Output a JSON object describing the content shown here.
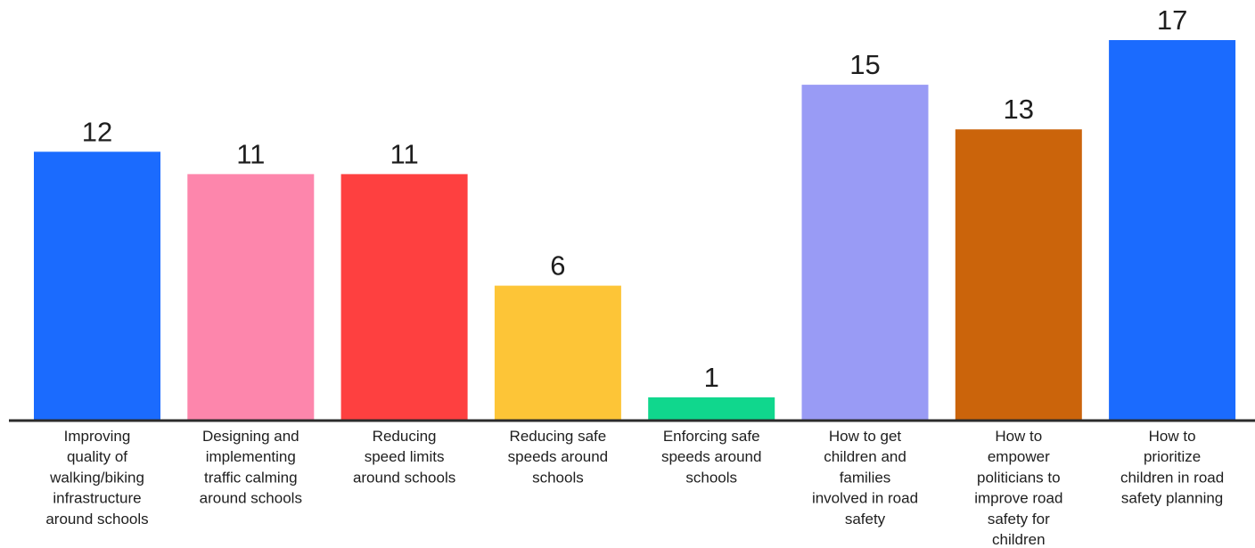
{
  "chart_data": {
    "type": "bar",
    "categories": [
      "Improving quality of walking/biking infrastructure around schools",
      "Designing and implementing traffic calming around schools",
      "Reducing speed limits around schools",
      "Reducing safe speeds around schools",
      "Enforcing safe speeds around schools",
      "How to get children and families involved in road safety",
      "How to empower politicians to improve road safety for children",
      "How to prioritize children in road safety planning"
    ],
    "category_lines": [
      [
        "Improving",
        "quality of",
        "walking/biking",
        "infrastructure",
        "around schools"
      ],
      [
        "Designing and",
        "implementing",
        "traffic calming",
        "around schools"
      ],
      [
        "Reducing",
        "speed limits",
        "around schools"
      ],
      [
        "Reducing safe",
        "speeds around",
        "schools"
      ],
      [
        "Enforcing safe",
        "speeds around",
        "schools"
      ],
      [
        "How to get",
        "children and",
        "families",
        "involved in road",
        "safety"
      ],
      [
        "How to",
        "empower",
        "politicians to",
        "improve road",
        "safety for",
        "children"
      ],
      [
        "How to",
        "prioritize",
        "children in road",
        "safety planning"
      ]
    ],
    "values": [
      12,
      11,
      11,
      6,
      1,
      15,
      13,
      17
    ],
    "value_labels": [
      "12",
      "11",
      "11",
      "6",
      "1",
      "15",
      "13",
      "17"
    ],
    "colors": [
      "#1b6bfe",
      "#fd86ac",
      "#fe4040",
      "#fdc537",
      "#10d78d",
      "#999bf5",
      "#cb640b",
      "#1b6bfe"
    ],
    "axis_color": "#2b2b2b",
    "title": "",
    "xlabel": "",
    "ylabel": "",
    "ylim": [
      0,
      17
    ],
    "grid": false,
    "legend": "none"
  }
}
